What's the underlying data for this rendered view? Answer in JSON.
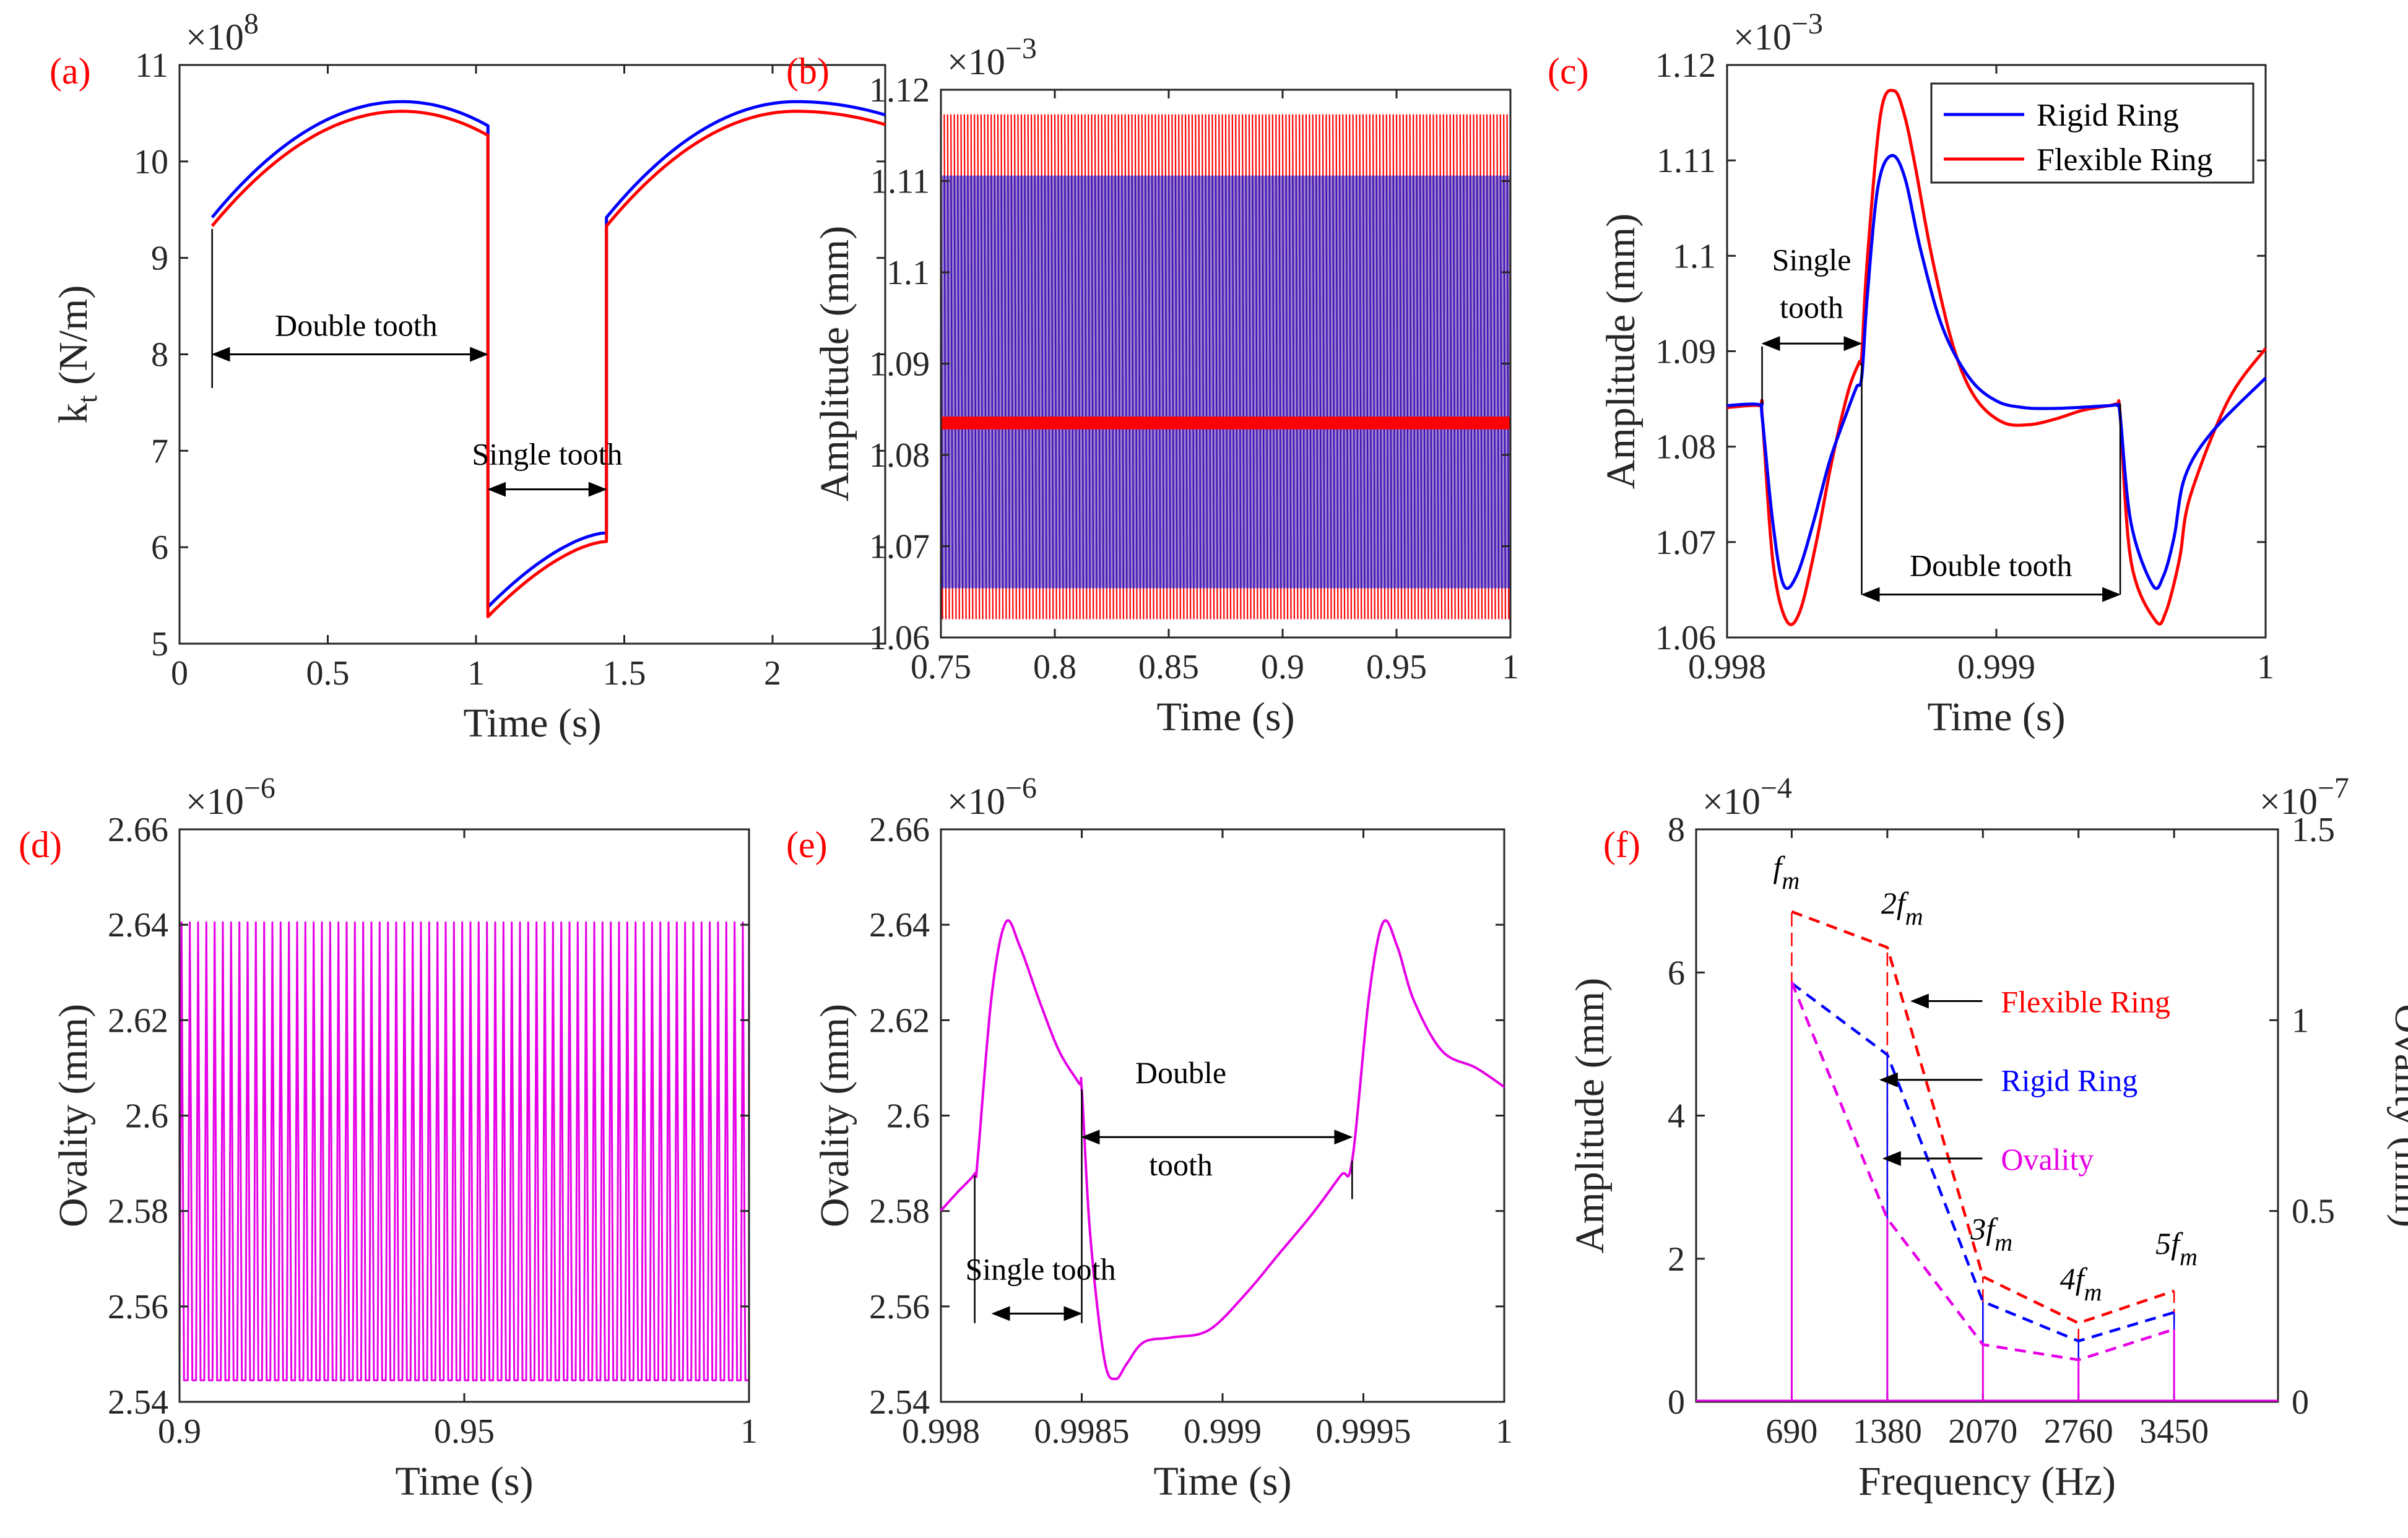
{
  "chart_data": [
    {
      "id": "a",
      "type": "line",
      "panel_label": "(a)",
      "xlabel": "Time (s)",
      "ylabel": "k_t (N/m)",
      "exponent": "8",
      "xlim": [
        0,
        2.38
      ],
      "ylim": [
        5,
        11
      ],
      "xticks": [
        0,
        0.5,
        1,
        1.5,
        2
      ],
      "xtick_labels": [
        "0",
        "0.5",
        "1",
        "1.5",
        "2"
      ],
      "yticks": [
        5,
        6,
        7,
        8,
        9,
        10,
        11
      ],
      "ytick_labels": [
        "5",
        "6",
        "7",
        "8",
        "9",
        "10",
        "11"
      ],
      "series": [
        {
          "name": "Rigid Ring",
          "color": "#0000ff",
          "peak": 10.62,
          "upper_start": 9.42,
          "upper_end": 10.37,
          "lower_start": 5.38,
          "lower_end": 6.15
        },
        {
          "name": "Flexible Ring",
          "color": "#ff0000",
          "peak": 10.52,
          "upper_start": 9.33,
          "upper_end": 10.27,
          "lower_start": 5.28,
          "lower_end": 6.06
        }
      ],
      "mesh_segments": [
        [
          0.11,
          1.04
        ],
        [
          1.44,
          2.38
        ]
      ],
      "annotations": [
        {
          "text": "Double tooth",
          "from": 0.11,
          "to": 1.04,
          "y": 8.0
        },
        {
          "text": "Single tooth",
          "from": 1.04,
          "to": 1.44,
          "y": 6.6
        }
      ]
    },
    {
      "id": "b",
      "type": "line",
      "panel_label": "(b)",
      "xlabel": "Time (s)",
      "ylabel": "Amplitude (mm)",
      "exponent": "-3",
      "xlim": [
        0.75,
        1
      ],
      "ylim": [
        1.06,
        1.12
      ],
      "xticks": [
        0.75,
        0.8,
        0.85,
        0.9,
        0.95,
        1
      ],
      "xtick_labels": [
        "0.75",
        "0.8",
        "0.85",
        "0.9",
        "0.95",
        "1"
      ],
      "yticks": [
        1.06,
        1.07,
        1.08,
        1.09,
        1.1,
        1.11,
        1.12
      ],
      "ytick_labels": [
        "1.06",
        "1.07",
        "1.08",
        "1.09",
        "1.1",
        "1.11",
        "1.12"
      ],
      "series": [
        {
          "name": "Flexible Ring",
          "color": "#ff0000",
          "min": 1.062,
          "max": 1.1173,
          "mean": 1.0835
        },
        {
          "name": "Rigid Ring",
          "color": "#0000ff",
          "min": 1.0654,
          "max": 1.1106,
          "mean": 1.0838
        }
      ]
    },
    {
      "id": "c",
      "type": "line",
      "panel_label": "(c)",
      "xlabel": "Time (s)",
      "ylabel": "Amplitude (mm)",
      "exponent": "-3",
      "xlim": [
        0.998,
        1
      ],
      "ylim": [
        1.06,
        1.12
      ],
      "xticks": [
        0.998,
        0.999,
        1
      ],
      "xtick_labels": [
        "0.998",
        "0.999",
        "1"
      ],
      "yticks": [
        1.06,
        1.07,
        1.08,
        1.09,
        1.1,
        1.11,
        1.12
      ],
      "ytick_labels": [
        "1.06",
        "1.07",
        "1.08",
        "1.09",
        "1.1",
        "1.11",
        "1.12"
      ],
      "legend": [
        "Rigid Ring",
        "Flexible Ring"
      ],
      "series": [
        {
          "name": "Rigid Ring",
          "color": "#0000ff",
          "x": [
            0.998,
            0.99812,
            0.99813,
            0.99817,
            0.99821,
            0.99826,
            0.99832,
            0.99838,
            0.99844,
            0.99848,
            0.9985,
            0.99852,
            0.99856,
            0.99861,
            0.99866,
            0.99872,
            0.9988,
            0.9989,
            0.999,
            0.9991,
            0.9992,
            0.9993,
            0.99942,
            0.99945,
            0.99946,
            0.9995,
            0.99958,
            0.99962,
            0.99966,
            0.9997,
            0.9998,
            1.0
          ],
          "y": [
            1.0843,
            1.0844,
            1.0832,
            1.072,
            1.0655,
            1.0666,
            1.072,
            1.0784,
            1.0832,
            1.0862,
            1.0873,
            1.0955,
            1.1072,
            1.1105,
            1.1082,
            1.1005,
            1.0925,
            1.0872,
            1.0848,
            1.0841,
            1.084,
            1.0841,
            1.0843,
            1.0843,
            1.0832,
            1.072,
            1.0655,
            1.0664,
            1.0705,
            1.0768,
            1.0815,
            1.0872
          ]
        },
        {
          "name": "Flexible Ring",
          "color": "#ff0000",
          "x": [
            0.998,
            0.99812,
            0.99813,
            0.99817,
            0.99822,
            0.99827,
            0.99833,
            0.99839,
            0.99845,
            0.99849,
            0.9985,
            0.99852,
            0.99857,
            0.99862,
            0.99866,
            0.9987,
            0.99876,
            0.99884,
            0.99892,
            0.99902,
            0.99912,
            0.99922,
            0.99932,
            0.99942,
            0.99945,
            0.99946,
            0.9995,
            0.99959,
            0.99963,
            0.99968,
            0.99972,
            0.99986,
            1.0
          ],
          "y": [
            1.0841,
            1.0843,
            1.0834,
            1.068,
            1.0618,
            1.0627,
            1.0698,
            1.0786,
            1.0858,
            1.0888,
            1.0895,
            1.0993,
            1.1148,
            1.1173,
            1.1146,
            1.1092,
            1.1,
            1.0905,
            1.0852,
            1.0826,
            1.0823,
            1.0829,
            1.0838,
            1.0843,
            1.0844,
            1.0833,
            1.068,
            1.0618,
            1.0627,
            1.0682,
            1.0748,
            1.0848,
            1.0903
          ]
        }
      ],
      "annotations": [
        {
          "text_lines": [
            "Single",
            "tooth"
          ],
          "from": 0.99813,
          "to": 0.9985,
          "y": 1.0908
        },
        {
          "text": "Double tooth",
          "from": 0.9985,
          "to": 0.99946,
          "y": 1.0645
        }
      ]
    },
    {
      "id": "d",
      "type": "line",
      "panel_label": "(d)",
      "xlabel": "Time (s)",
      "ylabel": "Ovality (mm)",
      "exponent": "-6",
      "xlim": [
        0.9,
        1
      ],
      "ylim": [
        2.54,
        2.66
      ],
      "xticks": [
        0.9,
        0.95,
        1
      ],
      "xtick_labels": [
        "0.9",
        "0.95",
        "1"
      ],
      "yticks": [
        2.54,
        2.56,
        2.58,
        2.6,
        2.62,
        2.64,
        2.66
      ],
      "ytick_labels": [
        "2.54",
        "2.56",
        "2.58",
        "2.6",
        "2.62",
        "2.64",
        "2.66"
      ],
      "series": [
        {
          "name": "Ovality",
          "color": "#e600e6",
          "min": 2.5445,
          "max": 2.6405,
          "cycles": 69
        }
      ]
    },
    {
      "id": "e",
      "type": "line",
      "panel_label": "(e)",
      "xlabel": "Time (s)",
      "ylabel": "Ovality (mm)",
      "exponent": "-6",
      "xlim": [
        0.998,
        1
      ],
      "ylim": [
        2.54,
        2.66
      ],
      "xticks": [
        0.998,
        0.9985,
        0.999,
        0.9995,
        1
      ],
      "xtick_labels": [
        "0.998",
        "0.9985",
        "0.999",
        "0.9995",
        "1"
      ],
      "yticks": [
        2.54,
        2.56,
        2.58,
        2.6,
        2.62,
        2.64,
        2.66
      ],
      "ytick_labels": [
        "2.54",
        "2.56",
        "2.58",
        "2.6",
        "2.62",
        "2.64",
        "2.66"
      ],
      "series": [
        {
          "name": "Ovality",
          "color": "#e600e6",
          "x": [
            0.998,
            0.99806,
            0.99812,
            0.99813,
            0.99818,
            0.99823,
            0.99828,
            0.99835,
            0.99842,
            0.99849,
            0.9985,
            0.99853,
            0.99858,
            0.99862,
            0.99866,
            0.99872,
            0.99882,
            0.99895,
            0.99908,
            0.9992,
            0.99932,
            0.99942,
            0.99946,
            0.99952,
            0.99957,
            0.99962,
            0.99968,
            0.99978,
            0.9999,
            1.0
          ],
          "y": [
            2.5801,
            2.584,
            2.5878,
            2.5905,
            2.625,
            2.6405,
            2.6355,
            2.624,
            2.6135,
            2.6068,
            2.6055,
            2.575,
            2.549,
            2.5448,
            2.548,
            2.5525,
            2.5535,
            2.555,
            2.5625,
            2.571,
            2.5795,
            2.5875,
            2.5905,
            2.625,
            2.6405,
            2.6355,
            2.624,
            2.6135,
            2.61,
            2.606
          ]
        }
      ],
      "annotations": [
        {
          "text": "Single tooth",
          "from": 0.99812,
          "to": 0.9985,
          "y": 2.5585
        },
        {
          "text_lines": [
            "Double",
            "tooth"
          ],
          "from": 0.9985,
          "to": 0.99946,
          "y": 2.5955
        }
      ]
    },
    {
      "id": "f",
      "type": "bar",
      "panel_label": "(f)",
      "xlabel": "Frequency (Hz)",
      "ylabel": "Amplitude (mm)",
      "ylabel_right": "Ovality (mm)",
      "exponent": "-4",
      "exponent_right": "-7",
      "xlim": [
        0,
        4200
      ],
      "ylim": [
        0,
        8
      ],
      "ylim_right": [
        0,
        1.5
      ],
      "categories": [
        "690",
        "1380",
        "2070",
        "2760",
        "3450"
      ],
      "x": [
        690,
        1380,
        2070,
        2760,
        3450
      ],
      "xticks": [
        690,
        1380,
        2070,
        2760,
        3450
      ],
      "yticks": [
        0,
        2,
        4,
        6,
        8
      ],
      "ytick_labels": [
        "0",
        "2",
        "4",
        "6",
        "8"
      ],
      "yticks_right": [
        0,
        0.5,
        1,
        1.5
      ],
      "ytick_labels_right": [
        "0",
        "0.5",
        "1",
        "1.5"
      ],
      "harmonics": [
        "f",
        "2f",
        "3f",
        "4f",
        "5f"
      ],
      "harmonic_subscript": "m",
      "series": [
        {
          "name": "Flexible Ring",
          "color": "#ff0000",
          "axis": "left",
          "values": [
            6.85,
            6.35,
            1.75,
            1.1,
            1.55
          ]
        },
        {
          "name": "Rigid Ring",
          "color": "#0000ff",
          "axis": "left",
          "values": [
            5.85,
            4.85,
            1.4,
            0.85,
            1.25
          ]
        },
        {
          "name": "Ovality",
          "color": "#e600e6",
          "axis": "right",
          "values": [
            1.1,
            0.48,
            0.15,
            0.11,
            0.19
          ]
        }
      ],
      "annotations": [
        {
          "text": "Flexible Ring",
          "color": "#ff0000"
        },
        {
          "text": "Rigid Ring",
          "color": "#0000ff"
        },
        {
          "text": "Ovality",
          "color": "#e600e6"
        }
      ]
    }
  ]
}
